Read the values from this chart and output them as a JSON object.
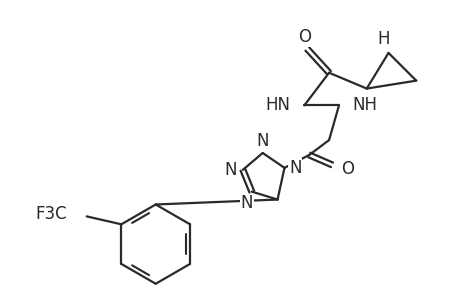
{
  "background_color": "#ffffff",
  "line_color": "#2a2a2a",
  "line_width": 1.6,
  "font_size": 12,
  "figsize": [
    4.6,
    3.0
  ],
  "dpi": 100,
  "tetrazole_N_labels": [
    "N",
    "N",
    "N",
    "N"
  ],
  "cf3_label": "F3C",
  "h_label": "H",
  "o_label": "O",
  "hn_label": "HN",
  "nh_label": "NH"
}
